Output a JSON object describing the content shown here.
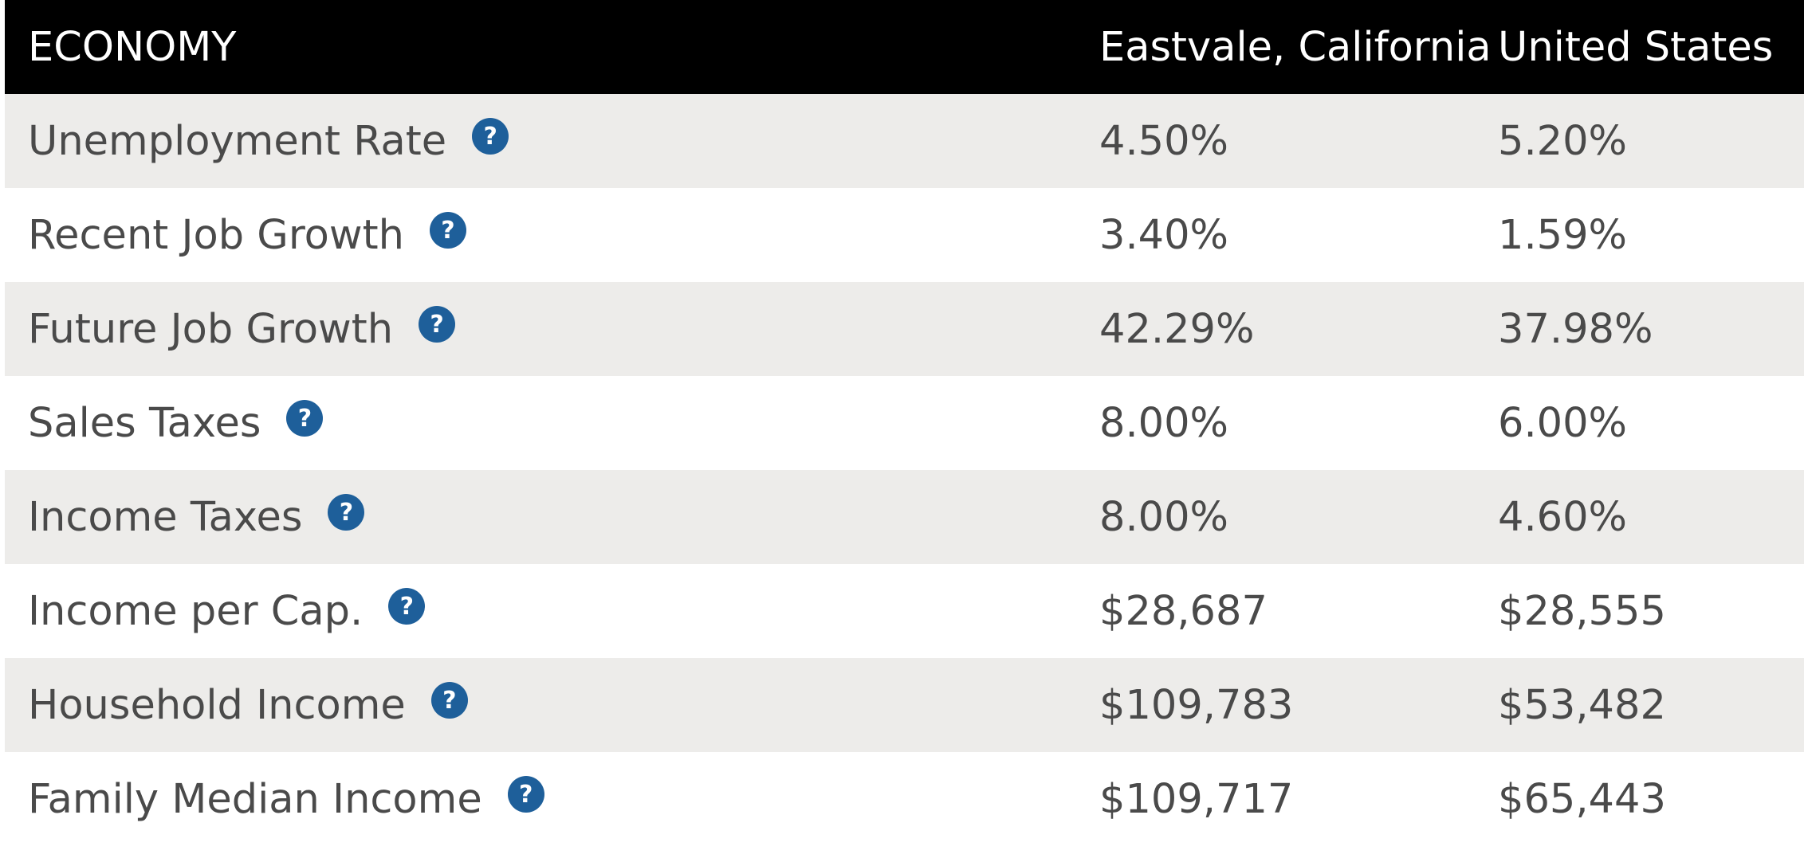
{
  "header": {
    "title": "ECONOMY",
    "col_local": "Eastvale, California",
    "col_national": "United States"
  },
  "help_icon_glyph": "?",
  "rows": [
    {
      "label": "Unemployment Rate",
      "local": "4.50%",
      "national": "5.20%"
    },
    {
      "label": "Recent Job Growth",
      "local": "3.40%",
      "national": "1.59%"
    },
    {
      "label": "Future Job Growth",
      "local": "42.29%",
      "national": "37.98%"
    },
    {
      "label": "Sales Taxes",
      "local": "8.00%",
      "national": "6.00%"
    },
    {
      "label": "Income Taxes",
      "local": "8.00%",
      "national": "4.60%"
    },
    {
      "label": "Income per Cap.",
      "local": "$28,687",
      "national": "$28,555"
    },
    {
      "label": "Household Income",
      "local": "$109,783",
      "national": "$53,482"
    },
    {
      "label": "Family Median Income",
      "local": "$109,717",
      "national": "$65,443"
    }
  ],
  "colors": {
    "header_bg": "#000000",
    "row_shaded": "#edecea",
    "help_icon": "#1e5f9a",
    "text": "#4a4a4a"
  }
}
